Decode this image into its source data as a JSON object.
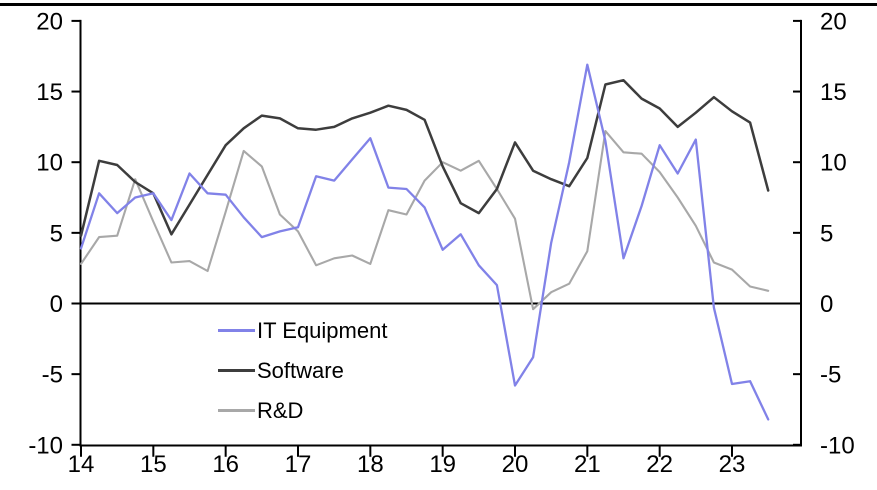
{
  "chart": {
    "background_color": "#ffffff",
    "axis_color": "#000000",
    "top_rule_color": "#000000",
    "legend_position": "inside-bottom-left"
  },
  "chart_data": {
    "type": "line",
    "frequency": "quarterly",
    "x_start_label": "14",
    "x_tick_labels": [
      "14",
      "15",
      "16",
      "17",
      "18",
      "19",
      "20",
      "21",
      "22",
      "23"
    ],
    "y_tick_labels_left": [
      "20",
      "15",
      "10",
      "5",
      "0",
      "-5",
      "-10"
    ],
    "y_tick_labels_right": [
      "20",
      "15",
      "10",
      "5",
      "0",
      "-5",
      "-10"
    ],
    "y_tick_values": [
      20,
      15,
      10,
      5,
      0,
      -5,
      -10
    ],
    "ylim": [
      -10,
      20
    ],
    "zero_line": true,
    "grid": false,
    "series": [
      {
        "name": "IT Equipment",
        "color": "#8182e8",
        "stroke_width": 2.3,
        "values": [
          3.9,
          7.8,
          6.4,
          7.5,
          7.8,
          5.9,
          9.2,
          7.8,
          7.7,
          6.1,
          4.7,
          5.1,
          5.4,
          9.0,
          8.7,
          10.2,
          11.7,
          8.2,
          8.1,
          6.8,
          3.8,
          4.9,
          2.7,
          1.3,
          -5.8,
          -3.8,
          4.3,
          10.0,
          16.9,
          11.5,
          3.2,
          6.9,
          11.2,
          9.2,
          11.6,
          -0.3,
          -5.7,
          -5.5,
          -8.2
        ]
      },
      {
        "name": "Software",
        "color": "#3d3d3d",
        "stroke_width": 2.5,
        "values": [
          4.8,
          10.1,
          9.8,
          8.6,
          7.8,
          4.9,
          7.0,
          9.1,
          11.2,
          12.4,
          13.3,
          13.1,
          12.4,
          12.3,
          12.5,
          13.1,
          13.5,
          14.0,
          13.7,
          13.0,
          9.7,
          7.1,
          6.4,
          8.1,
          11.4,
          9.4,
          8.8,
          8.3,
          10.3,
          15.5,
          15.8,
          14.5,
          13.8,
          12.5,
          13.5,
          14.6,
          13.6,
          12.8,
          8.0
        ]
      },
      {
        "name": "R&D",
        "color": "#a8a8a8",
        "stroke_width": 2.1,
        "values": [
          2.8,
          4.7,
          4.8,
          8.8,
          5.8,
          2.9,
          3.0,
          2.3,
          6.5,
          10.8,
          9.7,
          6.3,
          5.1,
          2.7,
          3.2,
          3.4,
          2.8,
          6.6,
          6.3,
          8.7,
          10.0,
          9.4,
          10.1,
          8.1,
          6.0,
          -0.4,
          0.8,
          1.4,
          3.7,
          12.2,
          10.7,
          10.6,
          9.3,
          7.5,
          5.5,
          2.9,
          2.4,
          1.2,
          0.9
        ]
      }
    ]
  }
}
